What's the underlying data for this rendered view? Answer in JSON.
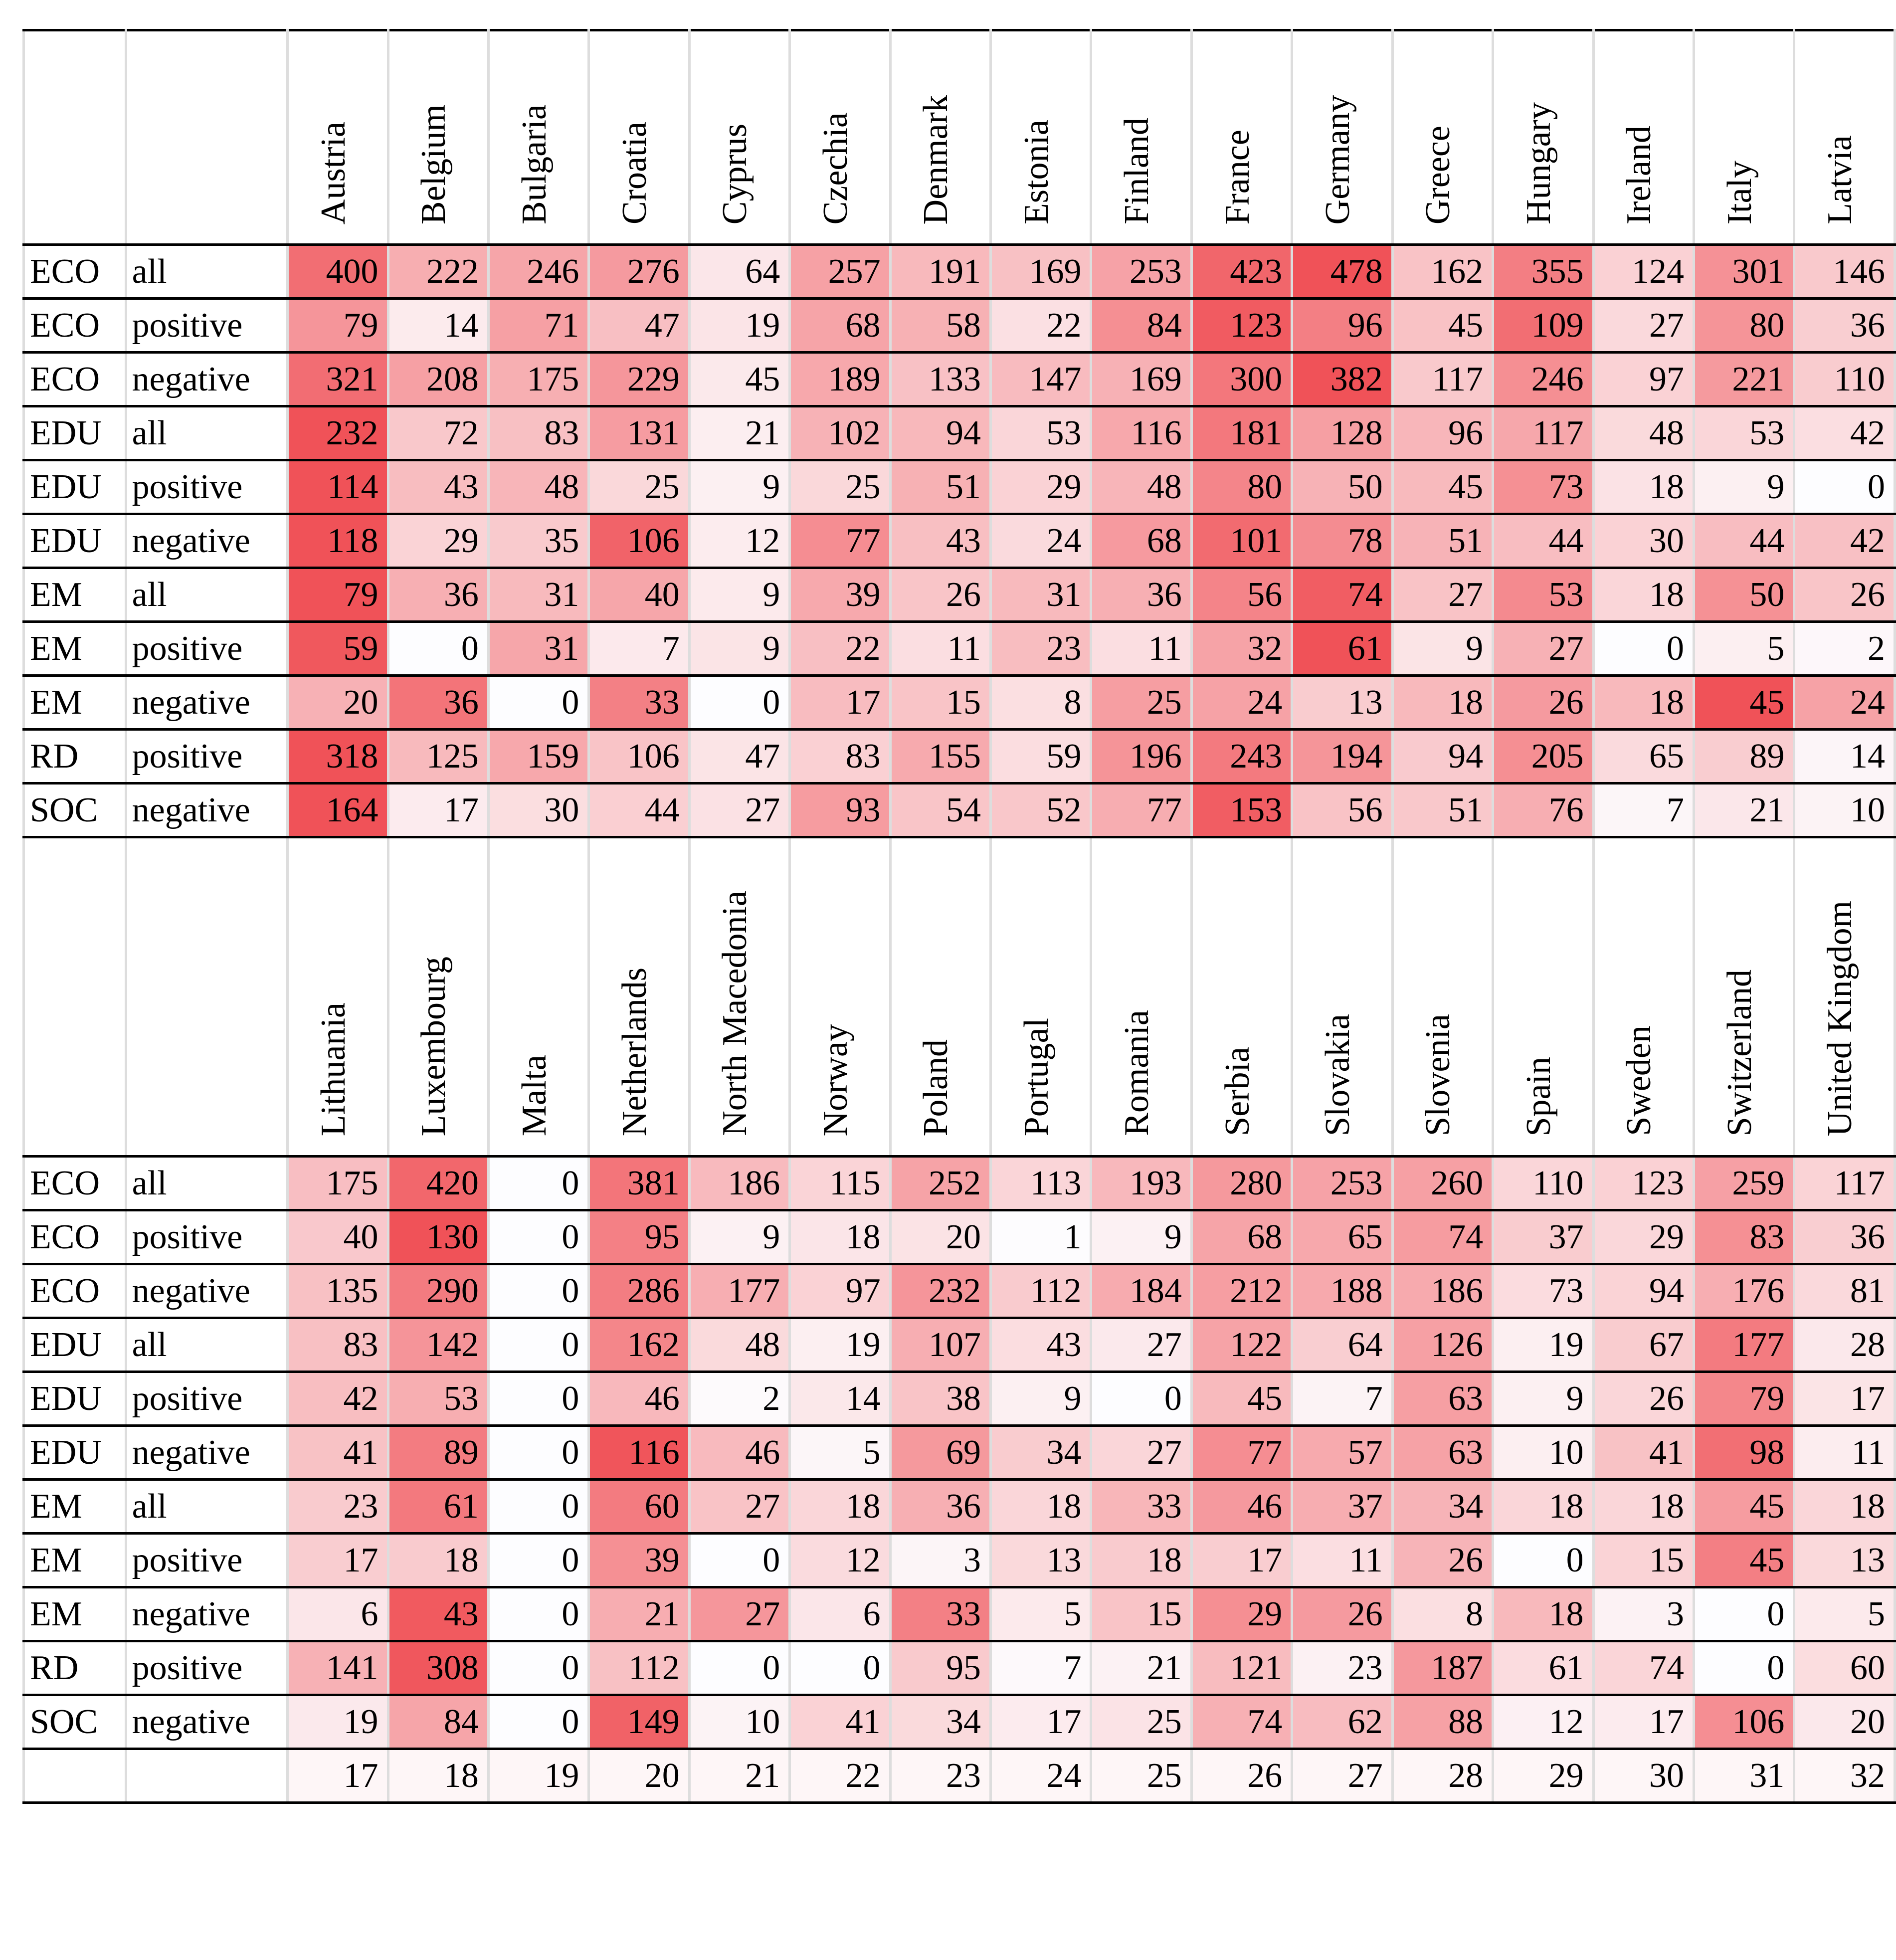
{
  "blocks": [
    {
      "countries": [
        "Austria",
        "Belgium",
        "Bulgaria",
        "Croatia",
        "Cyprus",
        "Czechia",
        "Denmark",
        "Estonia",
        "Finland",
        "France",
        "Germany",
        "Greece",
        "Hungary",
        "Ireland",
        "Italy",
        "Latvia"
      ],
      "rows": [
        {
          "topic": "ECO",
          "polarity": "all",
          "values": [
            400,
            222,
            246,
            276,
            64,
            257,
            191,
            169,
            253,
            423,
            478,
            162,
            355,
            124,
            301,
            146
          ]
        },
        {
          "topic": "ECO",
          "polarity": "positive",
          "values": [
            79,
            14,
            71,
            47,
            19,
            68,
            58,
            22,
            84,
            123,
            96,
            45,
            109,
            27,
            80,
            36
          ]
        },
        {
          "topic": "ECO",
          "polarity": "negative",
          "values": [
            321,
            208,
            175,
            229,
            45,
            189,
            133,
            147,
            169,
            300,
            382,
            117,
            246,
            97,
            221,
            110
          ]
        },
        {
          "topic": "EDU",
          "polarity": "all",
          "values": [
            232,
            72,
            83,
            131,
            21,
            102,
            94,
            53,
            116,
            181,
            128,
            96,
            117,
            48,
            53,
            42
          ]
        },
        {
          "topic": "EDU",
          "polarity": "positive",
          "values": [
            114,
            43,
            48,
            25,
            9,
            25,
            51,
            29,
            48,
            80,
            50,
            45,
            73,
            18,
            9,
            0
          ]
        },
        {
          "topic": "EDU",
          "polarity": "negative",
          "values": [
            118,
            29,
            35,
            106,
            12,
            77,
            43,
            24,
            68,
            101,
            78,
            51,
            44,
            30,
            44,
            42
          ]
        },
        {
          "topic": "EM",
          "polarity": "all",
          "values": [
            79,
            36,
            31,
            40,
            9,
            39,
            26,
            31,
            36,
            56,
            74,
            27,
            53,
            18,
            50,
            26
          ]
        },
        {
          "topic": "EM",
          "polarity": "positive",
          "values": [
            59,
            0,
            31,
            7,
            9,
            22,
            11,
            23,
            11,
            32,
            61,
            9,
            27,
            0,
            5,
            2
          ]
        },
        {
          "topic": "EM",
          "polarity": "negative",
          "values": [
            20,
            36,
            0,
            33,
            0,
            17,
            15,
            8,
            25,
            24,
            13,
            18,
            26,
            18,
            45,
            24
          ]
        },
        {
          "topic": "RD",
          "polarity": "positive",
          "values": [
            318,
            125,
            159,
            106,
            47,
            83,
            155,
            59,
            196,
            243,
            194,
            94,
            205,
            65,
            89,
            14
          ]
        },
        {
          "topic": "SOC",
          "polarity": "negative",
          "values": [
            164,
            17,
            30,
            44,
            27,
            93,
            54,
            52,
            77,
            153,
            56,
            51,
            76,
            7,
            21,
            10
          ]
        }
      ]
    },
    {
      "countries": [
        "Lithuania",
        "Luxembourg",
        "Malta",
        "Netherlands",
        "North Macedonia",
        "Norway",
        "Poland",
        "Portugal",
        "Romania",
        "Serbia",
        "Slovakia",
        "Slovenia",
        "Spain",
        "Sweden",
        "Switzerland",
        "United Kingdom"
      ],
      "rows": [
        {
          "topic": "ECO",
          "polarity": "all",
          "values": [
            175,
            420,
            0,
            381,
            186,
            115,
            252,
            113,
            193,
            280,
            253,
            260,
            110,
            123,
            259,
            117
          ]
        },
        {
          "topic": "ECO",
          "polarity": "positive",
          "values": [
            40,
            130,
            0,
            95,
            9,
            18,
            20,
            1,
            9,
            68,
            65,
            74,
            37,
            29,
            83,
            36
          ]
        },
        {
          "topic": "ECO",
          "polarity": "negative",
          "values": [
            135,
            290,
            0,
            286,
            177,
            97,
            232,
            112,
            184,
            212,
            188,
            186,
            73,
            94,
            176,
            81
          ]
        },
        {
          "topic": "EDU",
          "polarity": "all",
          "values": [
            83,
            142,
            0,
            162,
            48,
            19,
            107,
            43,
            27,
            122,
            64,
            126,
            19,
            67,
            177,
            28
          ]
        },
        {
          "topic": "EDU",
          "polarity": "positive",
          "values": [
            42,
            53,
            0,
            46,
            2,
            14,
            38,
            9,
            0,
            45,
            7,
            63,
            9,
            26,
            79,
            17
          ]
        },
        {
          "topic": "EDU",
          "polarity": "negative",
          "values": [
            41,
            89,
            0,
            116,
            46,
            5,
            69,
            34,
            27,
            77,
            57,
            63,
            10,
            41,
            98,
            11
          ]
        },
        {
          "topic": "EM",
          "polarity": "all",
          "values": [
            23,
            61,
            0,
            60,
            27,
            18,
            36,
            18,
            33,
            46,
            37,
            34,
            18,
            18,
            45,
            18
          ]
        },
        {
          "topic": "EM",
          "polarity": "positive",
          "values": [
            17,
            18,
            0,
            39,
            0,
            12,
            3,
            13,
            18,
            17,
            11,
            26,
            0,
            15,
            45,
            13
          ]
        },
        {
          "topic": "EM",
          "polarity": "negative",
          "values": [
            6,
            43,
            0,
            21,
            27,
            6,
            33,
            5,
            15,
            29,
            26,
            8,
            18,
            3,
            0,
            5
          ]
        },
        {
          "topic": "RD",
          "polarity": "positive",
          "values": [
            141,
            308,
            0,
            112,
            0,
            0,
            95,
            7,
            21,
            121,
            23,
            187,
            61,
            74,
            0,
            60
          ]
        },
        {
          "topic": "SOC",
          "polarity": "negative",
          "values": [
            19,
            84,
            0,
            149,
            10,
            41,
            34,
            17,
            25,
            74,
            62,
            88,
            12,
            17,
            106,
            20
          ]
        }
      ]
    }
  ],
  "footer": [
    17,
    18,
    19,
    20,
    21,
    22,
    23,
    24,
    25,
    26,
    27,
    28,
    29,
    30,
    31,
    32
  ]
}
